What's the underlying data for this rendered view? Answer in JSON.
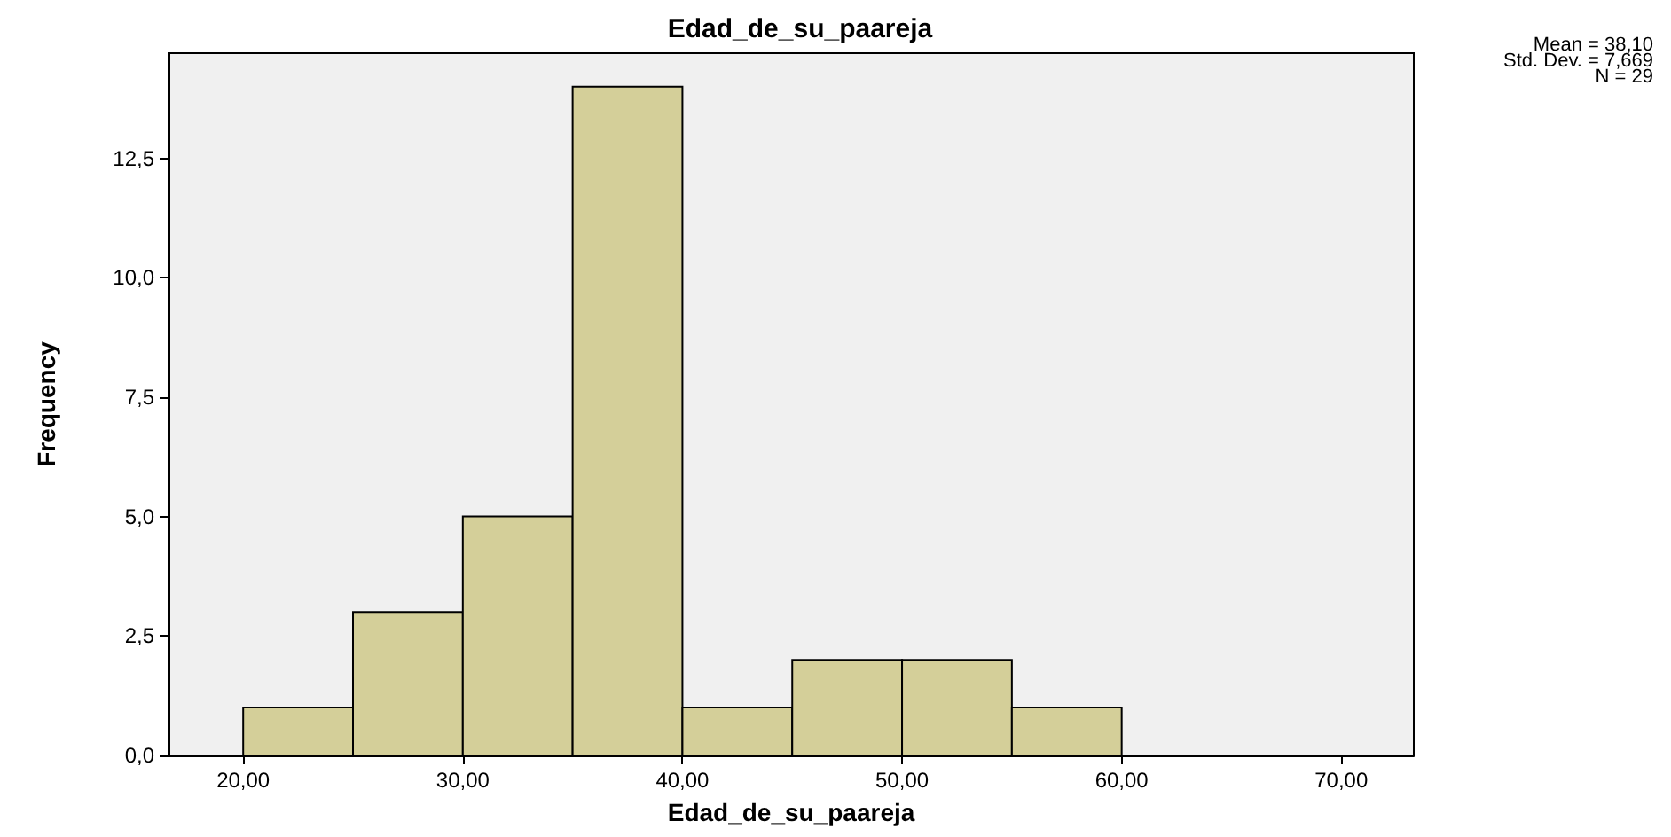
{
  "chart_data": {
    "type": "histogram",
    "title": "Edad_de_su_paareja",
    "xlabel": "Edad_de_su_paareja",
    "ylabel": "Frequency",
    "bins": [
      20,
      25,
      30,
      35,
      40,
      45,
      50,
      55,
      60
    ],
    "values": [
      1,
      3,
      5,
      14,
      1,
      2,
      2,
      1
    ],
    "color": "#d4cf99",
    "xlim": [
      16.6,
      73.3
    ],
    "xticks": [
      {
        "value": 20,
        "label": "20,00"
      },
      {
        "value": 30,
        "label": "30,00"
      },
      {
        "value": 40,
        "label": "40,00"
      },
      {
        "value": 50,
        "label": "50,00"
      },
      {
        "value": 60,
        "label": "60,00"
      },
      {
        "value": 70,
        "label": "70,00"
      }
    ],
    "ylim": [
      0,
      14.7
    ],
    "yticks": [
      {
        "value": 0,
        "label": "0,0"
      },
      {
        "value": 2.5,
        "label": "2,5"
      },
      {
        "value": 5,
        "label": "5,0"
      },
      {
        "value": 7.5,
        "label": "7,5"
      },
      {
        "value": 10,
        "label": "10,0"
      },
      {
        "value": 12.5,
        "label": "12,5"
      }
    ],
    "annotations": [
      "Mean = 38,10",
      "Std. Dev. = 7,669",
      "N = 29"
    ],
    "grid": false
  }
}
